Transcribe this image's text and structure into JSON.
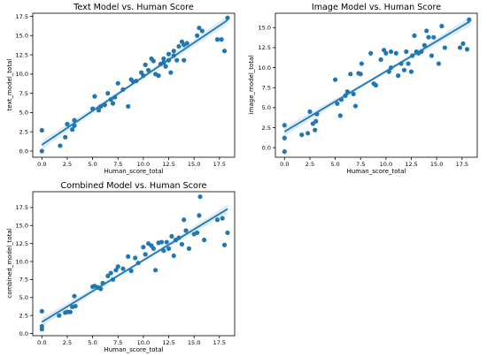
{
  "chart_data": [
    {
      "type": "scatter",
      "title": "Text Model vs. Human Score",
      "xlabel": "Human_score_total",
      "ylabel": "text_model_total",
      "xlim": [
        -0.9,
        19.0
      ],
      "ylim": [
        -0.8,
        17.9
      ],
      "xticks": [
        0.0,
        2.5,
        5.0,
        7.5,
        10.0,
        12.5,
        15.0,
        17.5
      ],
      "yticks": [
        0.0,
        2.5,
        5.0,
        7.5,
        10.0,
        12.5,
        15.0,
        17.5
      ],
      "xtick_labels": [
        "0.0",
        "2.5",
        "5.0",
        "7.5",
        "10.0",
        "12.5",
        "15.0",
        "17.5"
      ],
      "ytick_labels": [
        "0.0",
        "2.5",
        "5.0",
        "7.5",
        "10.0",
        "12.5",
        "15.0",
        "17.5"
      ],
      "grid": false,
      "color": "#1f77b4",
      "regression": {
        "x": [
          0.0,
          18.3
        ],
        "y": [
          0.8,
          17.0
        ]
      },
      "points": [
        [
          0.0,
          0.0
        ],
        [
          0.0,
          2.7
        ],
        [
          1.8,
          0.7
        ],
        [
          2.3,
          1.8
        ],
        [
          2.5,
          3.5
        ],
        [
          3.0,
          2.8
        ],
        [
          3.2,
          3.3
        ],
        [
          3.2,
          4.0
        ],
        [
          5.0,
          5.5
        ],
        [
          5.2,
          7.1
        ],
        [
          5.6,
          5.3
        ],
        [
          5.8,
          5.8
        ],
        [
          6.2,
          6.0
        ],
        [
          6.5,
          7.5
        ],
        [
          6.8,
          6.7
        ],
        [
          7.0,
          6.2
        ],
        [
          7.2,
          7.0
        ],
        [
          7.5,
          8.8
        ],
        [
          8.0,
          8.0
        ],
        [
          8.5,
          5.8
        ],
        [
          8.8,
          9.3
        ],
        [
          9.0,
          9.0
        ],
        [
          9.3,
          9.1
        ],
        [
          9.8,
          10.2
        ],
        [
          10.0,
          9.8
        ],
        [
          10.2,
          11.2
        ],
        [
          10.5,
          10.5
        ],
        [
          10.8,
          12.0
        ],
        [
          11.0,
          11.7
        ],
        [
          11.2,
          10.0
        ],
        [
          11.5,
          9.8
        ],
        [
          11.7,
          11.3
        ],
        [
          12.0,
          12.0
        ],
        [
          12.0,
          11.5
        ],
        [
          12.2,
          11.0
        ],
        [
          12.5,
          11.8
        ],
        [
          12.5,
          12.6
        ],
        [
          12.7,
          10.2
        ],
        [
          13.0,
          12.4
        ],
        [
          13.0,
          13.0
        ],
        [
          13.3,
          11.8
        ],
        [
          13.5,
          13.6
        ],
        [
          13.8,
          14.2
        ],
        [
          14.0,
          13.8
        ],
        [
          14.0,
          11.8
        ],
        [
          14.3,
          14.0
        ],
        [
          15.3,
          15.0
        ],
        [
          15.5,
          16.0
        ],
        [
          15.8,
          15.6
        ],
        [
          17.3,
          14.5
        ],
        [
          17.7,
          14.5
        ],
        [
          18.0,
          13.0
        ],
        [
          18.3,
          17.3
        ]
      ]
    },
    {
      "type": "scatter",
      "title": "Image Model vs. Human Score",
      "xlabel": "Human_score_total",
      "ylabel": "image_model_total",
      "xlim": [
        -0.9,
        19.0
      ],
      "ylim": [
        -1.2,
        16.8
      ],
      "xticks": [
        0.0,
        2.5,
        5.0,
        7.5,
        10.0,
        12.5,
        15.0,
        17.5
      ],
      "yticks": [
        0.0,
        2.5,
        5.0,
        7.5,
        10.0,
        12.5,
        15.0
      ],
      "xtick_labels": [
        "0.0",
        "2.5",
        "5.0",
        "7.5",
        "10.0",
        "12.5",
        "15.0",
        "17.5"
      ],
      "ytick_labels": [
        "0.0",
        "2.5",
        "5.0",
        "7.5",
        "10.0",
        "12.5",
        "15.0"
      ],
      "grid": false,
      "color": "#1f77b4",
      "regression": {
        "x": [
          0.0,
          18.3
        ],
        "y": [
          2.0,
          15.8
        ]
      },
      "points": [
        [
          0.0,
          -0.5
        ],
        [
          0.0,
          1.2
        ],
        [
          0.0,
          2.8
        ],
        [
          1.7,
          1.6
        ],
        [
          2.3,
          1.8
        ],
        [
          2.5,
          4.5
        ],
        [
          2.8,
          3.0
        ],
        [
          3.0,
          2.2
        ],
        [
          3.1,
          3.3
        ],
        [
          3.2,
          4.2
        ],
        [
          5.0,
          8.5
        ],
        [
          5.2,
          5.5
        ],
        [
          5.5,
          4.0
        ],
        [
          5.6,
          6.0
        ],
        [
          6.0,
          6.5
        ],
        [
          6.2,
          7.0
        ],
        [
          6.5,
          9.2
        ],
        [
          6.8,
          6.7
        ],
        [
          7.0,
          5.2
        ],
        [
          7.3,
          9.3
        ],
        [
          7.6,
          10.5
        ],
        [
          7.5,
          9.2
        ],
        [
          8.5,
          11.8
        ],
        [
          8.8,
          8.0
        ],
        [
          9.0,
          7.8
        ],
        [
          9.5,
          11.0
        ],
        [
          9.8,
          12.2
        ],
        [
          10.0,
          11.8
        ],
        [
          10.3,
          9.5
        ],
        [
          10.5,
          10.0
        ],
        [
          10.5,
          12.0
        ],
        [
          11.0,
          11.8
        ],
        [
          11.2,
          9.0
        ],
        [
          11.5,
          10.5
        ],
        [
          11.8,
          9.7
        ],
        [
          12.0,
          12.0
        ],
        [
          12.2,
          10.5
        ],
        [
          12.5,
          9.5
        ],
        [
          12.6,
          11.5
        ],
        [
          12.8,
          14.0
        ],
        [
          13.0,
          12.0
        ],
        [
          13.2,
          11.8
        ],
        [
          13.5,
          12.0
        ],
        [
          13.8,
          12.8
        ],
        [
          14.0,
          14.6
        ],
        [
          14.2,
          13.8
        ],
        [
          14.5,
          11.5
        ],
        [
          14.7,
          13.8
        ],
        [
          15.2,
          10.5
        ],
        [
          15.5,
          15.2
        ],
        [
          15.8,
          12.5
        ],
        [
          17.3,
          12.5
        ],
        [
          17.6,
          13.0
        ],
        [
          18.0,
          12.3
        ],
        [
          18.2,
          16.0
        ]
      ]
    },
    {
      "type": "scatter",
      "title": "Combined Model vs. Human Score",
      "xlabel": "Human_score_total",
      "ylabel": "combined_model_total",
      "xlim": [
        -0.9,
        19.0
      ],
      "ylim": [
        -0.3,
        19.7
      ],
      "xticks": [
        0.0,
        2.5,
        5.0,
        7.5,
        10.0,
        12.5,
        15.0,
        17.5
      ],
      "yticks": [
        0.0,
        2.5,
        5.0,
        7.5,
        10.0,
        12.5,
        15.0,
        17.5
      ],
      "xtick_labels": [
        "0.0",
        "2.5",
        "5.0",
        "7.5",
        "10.0",
        "12.5",
        "15.0",
        "17.5"
      ],
      "ytick_labels": [
        "0.0",
        "2.5",
        "5.0",
        "7.5",
        "10.0",
        "12.5",
        "15.0",
        "17.5"
      ],
      "grid": false,
      "color": "#1f77b4",
      "regression": {
        "x": [
          0.0,
          18.3
        ],
        "y": [
          1.6,
          17.3
        ]
      },
      "points": [
        [
          0.0,
          0.6
        ],
        [
          0.0,
          1.0
        ],
        [
          0.0,
          3.1
        ],
        [
          1.7,
          2.5
        ],
        [
          2.3,
          2.9
        ],
        [
          2.5,
          3.0
        ],
        [
          2.8,
          3.0
        ],
        [
          3.0,
          3.7
        ],
        [
          3.2,
          5.2
        ],
        [
          3.3,
          3.8
        ],
        [
          5.0,
          6.5
        ],
        [
          5.2,
          6.6
        ],
        [
          5.5,
          6.4
        ],
        [
          5.8,
          6.2
        ],
        [
          6.0,
          7.0
        ],
        [
          6.5,
          8.0
        ],
        [
          6.8,
          8.4
        ],
        [
          7.0,
          7.5
        ],
        [
          7.3,
          8.8
        ],
        [
          7.5,
          9.3
        ],
        [
          8.0,
          9.0
        ],
        [
          8.5,
          10.7
        ],
        [
          8.8,
          8.7
        ],
        [
          9.2,
          10.5
        ],
        [
          9.5,
          9.8
        ],
        [
          10.0,
          12.0
        ],
        [
          10.2,
          11.0
        ],
        [
          10.5,
          12.5
        ],
        [
          10.8,
          12.2
        ],
        [
          11.0,
          11.8
        ],
        [
          11.2,
          8.8
        ],
        [
          11.5,
          12.6
        ],
        [
          11.8,
          12.7
        ],
        [
          12.0,
          11.5
        ],
        [
          12.3,
          12.7
        ],
        [
          12.5,
          11.8
        ],
        [
          12.8,
          13.5
        ],
        [
          13.0,
          10.8
        ],
        [
          13.2,
          13.0
        ],
        [
          13.5,
          13.3
        ],
        [
          13.8,
          12.4
        ],
        [
          14.0,
          15.8
        ],
        [
          14.2,
          14.3
        ],
        [
          14.5,
          11.8
        ],
        [
          15.0,
          13.8
        ],
        [
          15.3,
          14.0
        ],
        [
          15.5,
          16.4
        ],
        [
          15.6,
          19.0
        ],
        [
          16.0,
          13.0
        ],
        [
          17.3,
          15.8
        ],
        [
          17.8,
          16.0
        ],
        [
          18.0,
          12.3
        ],
        [
          18.3,
          14.0
        ]
      ]
    }
  ]
}
